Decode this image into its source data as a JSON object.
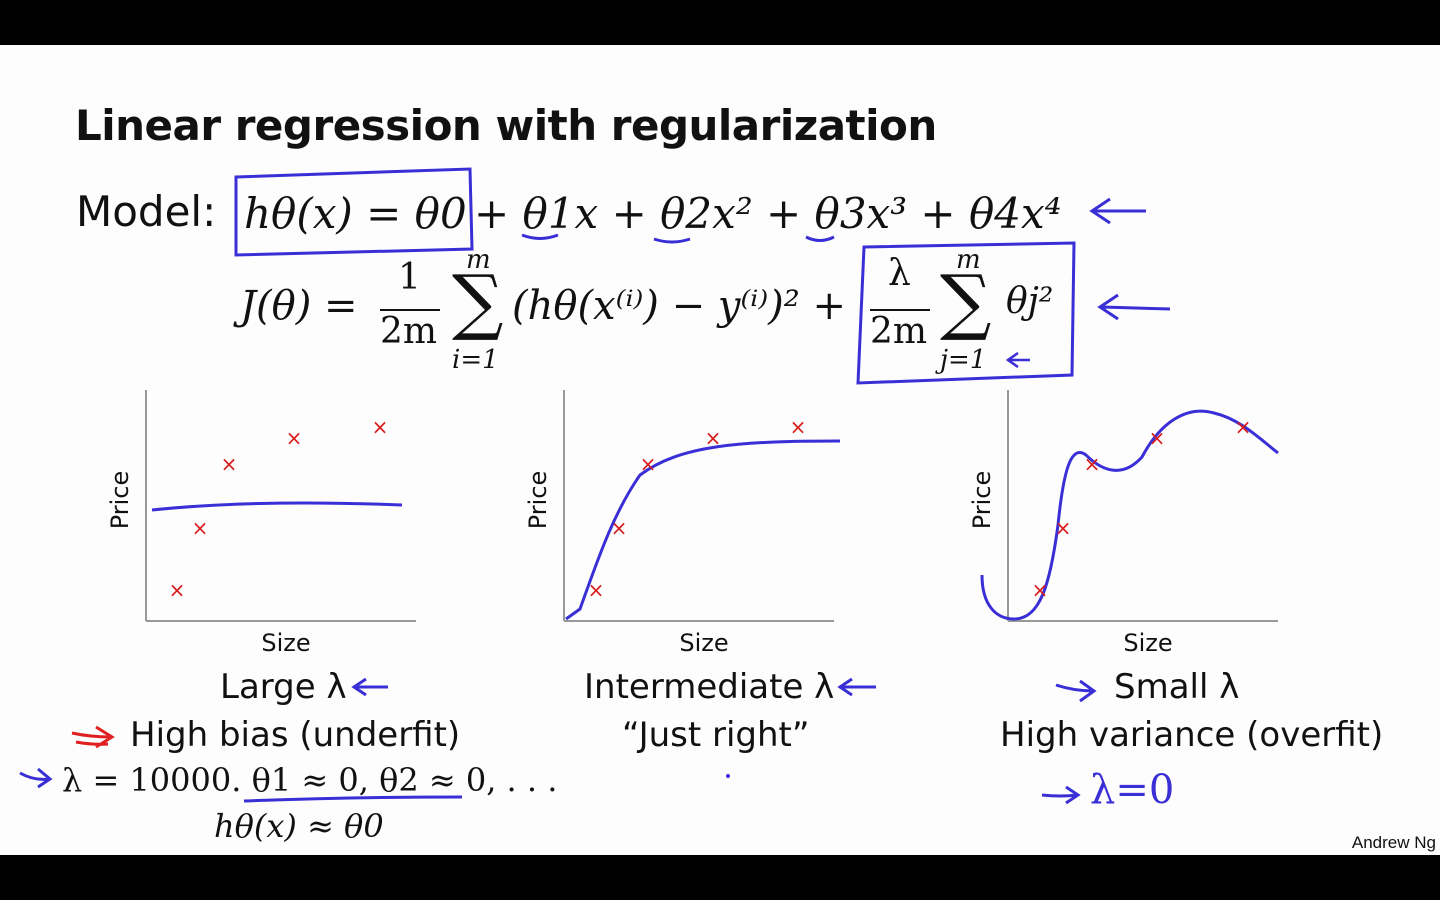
{
  "slide": {
    "title": "Linear regression with regularization",
    "model_label": "Model:",
    "model_eq_boxed": "hθ(x) = θ0",
    "model_eq_rest": "+ θ1x + θ2x² + θ3x³ + θ4x⁴",
    "cost_lhs": "J(θ) =",
    "cost_frac_num": "1",
    "cost_frac_den": "2m",
    "sum_top": "m",
    "sum_bottom_i": "i=1",
    "cost_sum_body": "(hθ(x⁽ⁱ⁾) − y⁽ⁱ⁾)² +",
    "reg_frac_num": "λ",
    "reg_frac_den": "2m",
    "sum_bottom_j": "j=1",
    "reg_term": "θj²",
    "credit": "Andrew Ng"
  },
  "panels": [
    {
      "ylabel": "Price",
      "xlabel": "Size",
      "caption": "Large λ",
      "subcaption": "High bias (underfit)"
    },
    {
      "ylabel": "Price",
      "xlabel": "Size",
      "caption": "Intermediate λ",
      "subcaption": "“Just right”"
    },
    {
      "ylabel": "Price",
      "xlabel": "Size",
      "caption": "Small λ",
      "subcaption": "High variance (overfit)"
    }
  ],
  "notes": {
    "lambda_large": "λ = 10000. θ1 ≈ 0, θ2 ≈ 0, . . .",
    "h_approx": "hθ(x) ≈ θ0",
    "lambda_zero": "λ=0"
  },
  "colors": {
    "ink": "#3a2fd6",
    "marks": "#d81b1b",
    "text": "#111111"
  },
  "chart_data": [
    {
      "type": "scatter",
      "xlabel": "Size",
      "ylabel": "Price",
      "fit": "flat line",
      "points_count": 5
    },
    {
      "type": "scatter",
      "xlabel": "Size",
      "ylabel": "Price",
      "fit": "smooth concave curve",
      "points_count": 5
    },
    {
      "type": "scatter",
      "xlabel": "Size",
      "ylabel": "Price",
      "fit": "wiggly high-order polynomial",
      "points_count": 5
    }
  ]
}
